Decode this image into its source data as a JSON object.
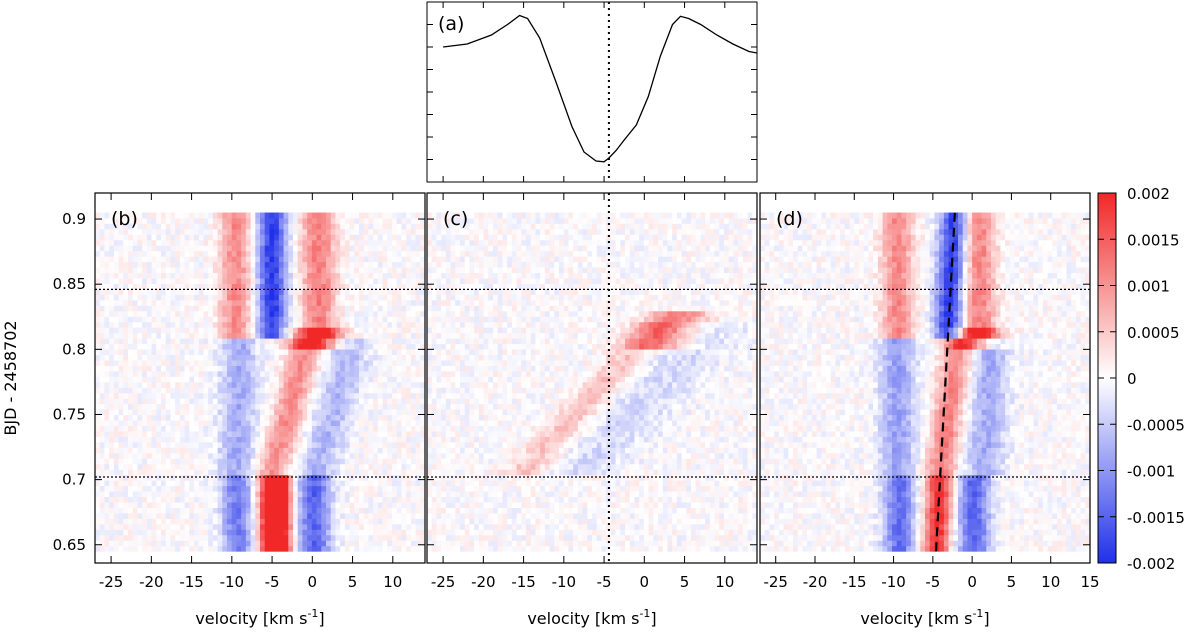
{
  "chart_data": {
    "type": "heatmap",
    "panels": [
      {
        "label": "(a)",
        "type": "line",
        "description_line_x_km_s": [
          -25,
          -22,
          -19,
          -17,
          -15.5,
          -14.5,
          -13,
          -11,
          -9,
          -7.5,
          -6,
          -5,
          -4.4,
          -3.5,
          -2.5,
          -1,
          0.5,
          2,
          3.5,
          4.5,
          5.5,
          7,
          9,
          11,
          13,
          15
        ],
        "description_line_y_norm": [
          0.78,
          0.8,
          0.86,
          0.93,
          0.99,
          0.97,
          0.84,
          0.55,
          0.25,
          0.08,
          0.02,
          0.015,
          0.04,
          0.09,
          0.16,
          0.26,
          0.45,
          0.72,
          0.93,
          0.985,
          0.97,
          0.93,
          0.86,
          0.8,
          0.75,
          0.74
        ],
        "vline_x": -4.4
      },
      {
        "label": "(b)"
      },
      {
        "label": "(c)",
        "vline_x": -4.4
      },
      {
        "label": "(d)",
        "trend_line": [
          [
            -4.6,
            0.645
          ],
          [
            -2.2,
            0.905
          ]
        ]
      }
    ],
    "x_ticks": [
      -25,
      -20,
      -15,
      -10,
      -5,
      0,
      5,
      10
    ],
    "x_ticks_last_panel": [
      -25,
      -20,
      -15,
      -10,
      -5,
      0,
      5,
      10,
      15
    ],
    "xlim": [
      -27,
      14
    ],
    "xlim_last_panel": [
      -27,
      15
    ],
    "xlabel_prefix": "velocity [km s",
    "xlabel_sup": "-1",
    "xlabel_suffix": "]",
    "ylabel": "BJD - 2458702",
    "y_ticks": [
      0.65,
      0.7,
      0.75,
      0.8,
      0.85,
      0.9
    ],
    "y_tick_labels": [
      "0.65",
      "0.7",
      "0.75",
      "0.8",
      "0.85",
      "0.9"
    ],
    "ylim": [
      0.636,
      0.92
    ],
    "hlines_y": [
      0.702,
      0.846
    ],
    "colorbar": {
      "min": -0.002,
      "max": 0.002,
      "ticks": [
        0.002,
        0.0015,
        0.001,
        0.0005,
        0,
        -0.0005,
        -0.001,
        -0.0015,
        -0.002
      ],
      "tick_labels": [
        "0.002",
        "0.0015",
        "0.001",
        "0.0005",
        "0",
        "-0.0005",
        "-0.001",
        "-0.0015",
        "-0.002"
      ],
      "colors": {
        "low": "#2030e8",
        "mid": "#ffffff",
        "high": "#f02828"
      }
    },
    "grid": false
  }
}
